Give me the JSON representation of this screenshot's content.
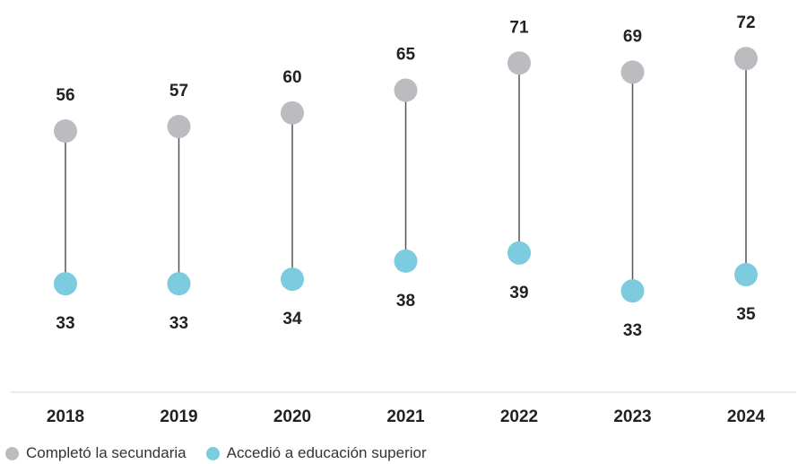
{
  "chart_data": {
    "type": "dumbbell",
    "title": "",
    "xlabel": "",
    "ylabel": "",
    "categories": [
      "2018",
      "2019",
      "2020",
      "2021",
      "2022",
      "2023",
      "2024"
    ],
    "series": [
      {
        "name": "Completó la secundaria",
        "color": "#bcbcc0",
        "values": [
          56,
          57,
          60,
          65,
          71,
          69,
          72
        ]
      },
      {
        "name": "Accedió a educación superior",
        "color": "#7ccbde",
        "values": [
          33,
          33,
          34,
          38,
          39,
          33,
          35
        ]
      }
    ],
    "ylim": [
      0,
      80
    ],
    "grid": false,
    "legend_position": "bottom-left"
  }
}
